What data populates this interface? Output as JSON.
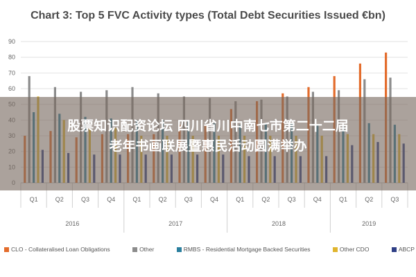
{
  "chart_data": {
    "type": "bar",
    "title": "Chart 3: Top 5 FVC Activity types (Total Debt Securities Issued €bn)",
    "ylim": [
      0,
      90
    ],
    "yticks": [
      0,
      10,
      20,
      30,
      40,
      50,
      60,
      70,
      80,
      90
    ],
    "grid": true,
    "legend_position": "bottom",
    "categories": [
      "Q1",
      "Q2",
      "Q3",
      "Q4",
      "Q1",
      "Q2",
      "Q3",
      "Q4",
      "Q1",
      "Q2",
      "Q3",
      "Q4",
      "Q1",
      "Q2",
      "Q3"
    ],
    "years": [
      {
        "label": "2016",
        "count": 4
      },
      {
        "label": "2017",
        "count": 4
      },
      {
        "label": "2018",
        "count": 4
      },
      {
        "label": "2019",
        "count": 3
      }
    ],
    "series": [
      {
        "name": "CLO - Collateralised Loan Obligations",
        "color": "#e36c2c",
        "values": [
          30,
          33,
          29,
          31,
          31,
          31,
          37,
          37,
          47,
          52,
          57,
          61,
          68,
          76,
          83
        ]
      },
      {
        "name": "Other",
        "color": "#8c8c8c",
        "values": [
          68,
          61,
          58,
          59,
          61,
          57,
          55,
          54,
          52,
          53,
          55,
          58,
          59,
          66,
          67
        ]
      },
      {
        "name": "RMBS - Residential Mortgage Backed Securities",
        "color": "#2a7f9e",
        "values": [
          45,
          44,
          42,
          41,
          40,
          40,
          39,
          38,
          37,
          38,
          38,
          37,
          36,
          38,
          37
        ]
      },
      {
        "name": "Other CDO",
        "color": "#e0b52e",
        "values": [
          55,
          40,
          35,
          35,
          30,
          30,
          30,
          30,
          30,
          30,
          30,
          30,
          31,
          31,
          31
        ]
      },
      {
        "name": "ABCP",
        "color": "#2f3f86",
        "values": [
          21,
          19,
          18,
          18,
          18,
          18,
          18,
          18,
          17,
          17,
          17,
          17,
          24,
          26,
          25
        ]
      }
    ]
  },
  "banner": {
    "line1": "股票知识配资论坛 四川省川中南七市第二十二届",
    "line2": "老年书画联展暨惠民活动圆满举办"
  }
}
